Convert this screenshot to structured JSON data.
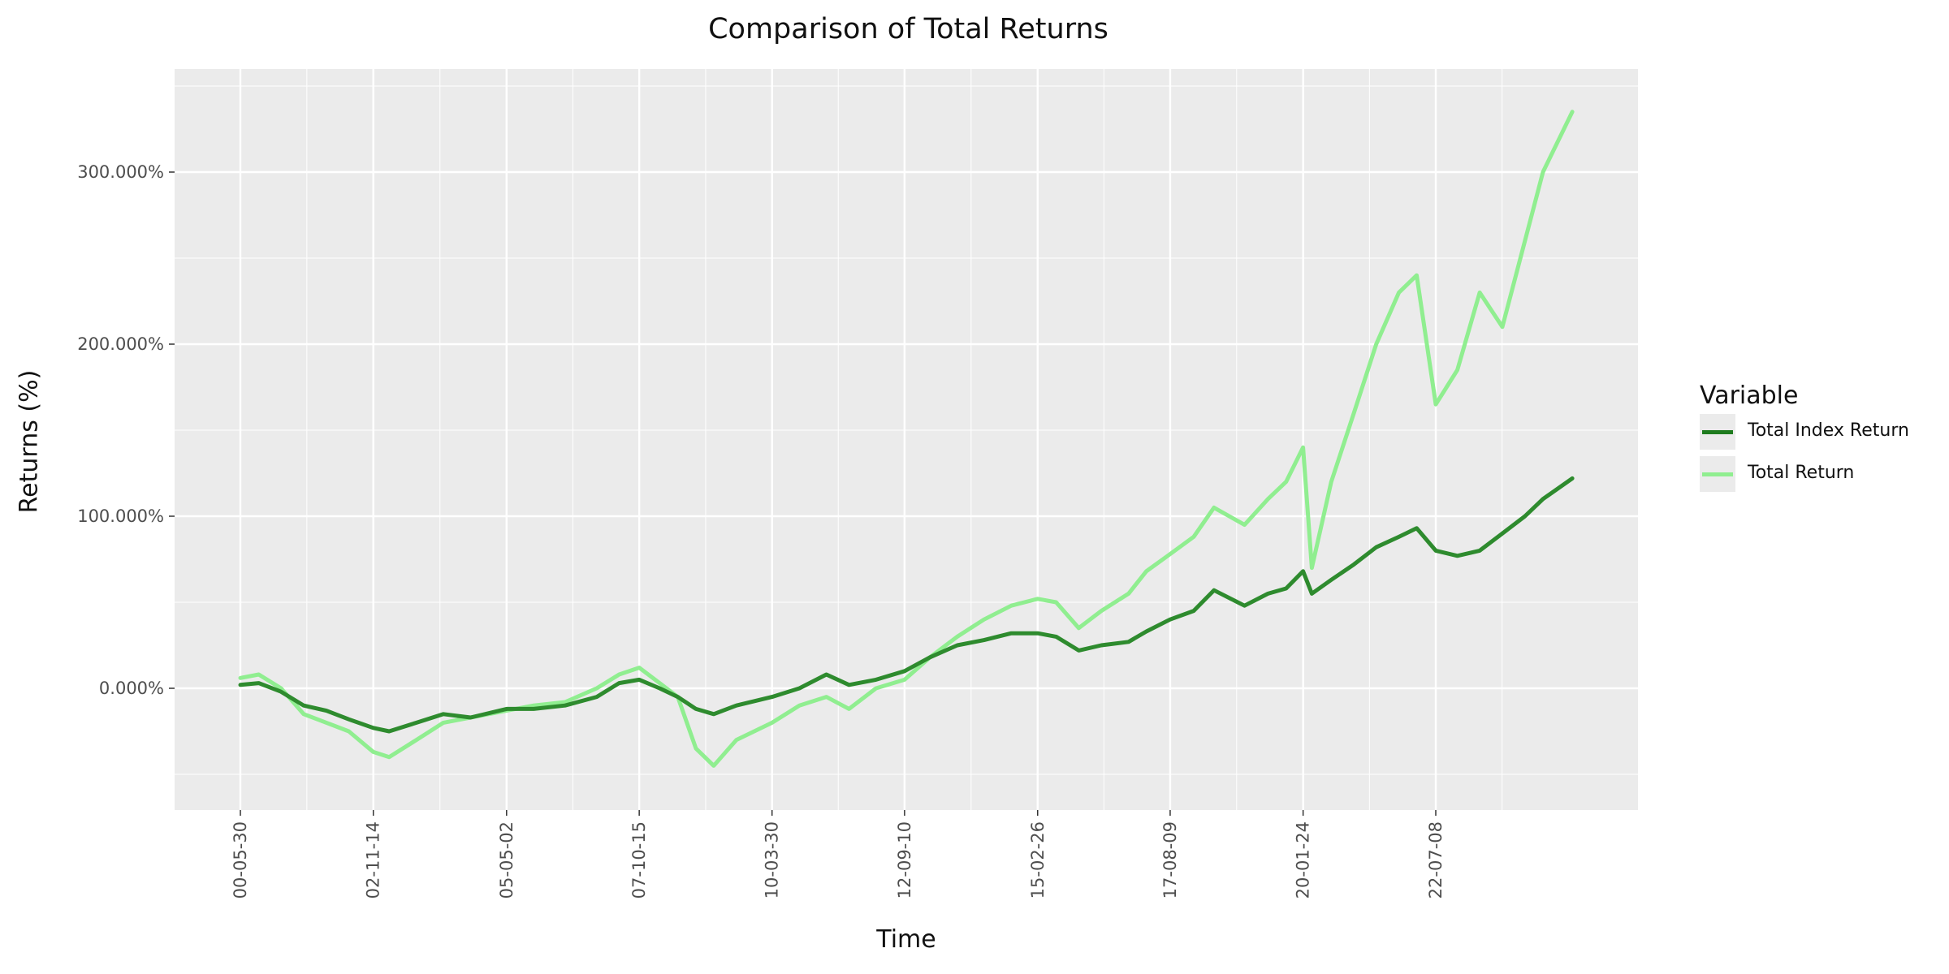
{
  "chart_data": {
    "type": "line",
    "title": "Comparison of Total Returns",
    "xlabel": "Time",
    "ylabel": "Returns (%)",
    "x_tick_labels": [
      "00-05-30",
      "02-11-14",
      "05-05-02",
      "07-10-15",
      "10-03-30",
      "12-09-10",
      "15-02-26",
      "17-08-09",
      "20-01-24",
      "22-07-08"
    ],
    "y_tick_labels": [
      "0.000%",
      "100.000%",
      "200.000%",
      "300.000%"
    ],
    "y_ticks": [
      0,
      100,
      200,
      300
    ],
    "ylim": [
      -70,
      360
    ],
    "grid": true,
    "legend": {
      "title": "Variable",
      "position": "right"
    },
    "background_color": "#ebebeb",
    "x": [
      "2000-05-30",
      "2000-10-01",
      "2001-03-01",
      "2001-08-01",
      "2002-01-01",
      "2002-06-01",
      "2002-11-14",
      "2003-03-01",
      "2003-09-01",
      "2004-03-01",
      "2004-09-01",
      "2005-05-02",
      "2005-11-01",
      "2006-06-01",
      "2007-01-01",
      "2007-06-01",
      "2007-10-15",
      "2008-03-01",
      "2008-07-01",
      "2008-11-01",
      "2009-03-01",
      "2009-08-01",
      "2010-03-30",
      "2010-10-01",
      "2011-04-01",
      "2011-09-01",
      "2012-03-01",
      "2012-09-10",
      "2013-03-01",
      "2013-09-01",
      "2014-03-01",
      "2014-09-01",
      "2015-02-26",
      "2015-07-01",
      "2015-12-01",
      "2016-05-01",
      "2016-11-01",
      "2017-03-01",
      "2017-08-09",
      "2018-01-15",
      "2018-06-01",
      "2018-12-24",
      "2019-06-01",
      "2019-10-01",
      "2020-01-24",
      "2020-03-23",
      "2020-08-01",
      "2021-01-01",
      "2021-06-01",
      "2021-11-01",
      "2022-03-01",
      "2022-07-08",
      "2022-12-01",
      "2023-05-01",
      "2023-10-01",
      "2024-03-01",
      "2024-07-01",
      "2025-01-15"
    ],
    "series": [
      {
        "name": "Total Index Return",
        "color": "#2e8b2e",
        "values": [
          2,
          3,
          -2,
          -10,
          -13,
          -18,
          -23,
          -25,
          -20,
          -15,
          -17,
          -12,
          -12,
          -10,
          -5,
          3,
          5,
          0,
          -5,
          -12,
          -15,
          -10,
          -5,
          0,
          8,
          2,
          5,
          10,
          18,
          25,
          28,
          32,
          32,
          30,
          22,
          25,
          27,
          33,
          40,
          45,
          57,
          48,
          55,
          58,
          68,
          55,
          63,
          72,
          82,
          88,
          93,
          80,
          77,
          80,
          90,
          100,
          110,
          122
        ]
      },
      {
        "name": "Total Return",
        "color": "#90ee90",
        "values": [
          6,
          8,
          0,
          -15,
          -20,
          -25,
          -37,
          -40,
          -30,
          -20,
          -17,
          -13,
          -10,
          -8,
          0,
          8,
          12,
          3,
          -5,
          -35,
          -45,
          -30,
          -20,
          -10,
          -5,
          -12,
          0,
          5,
          18,
          30,
          40,
          48,
          52,
          50,
          35,
          45,
          55,
          68,
          78,
          88,
          105,
          95,
          110,
          120,
          140,
          70,
          120,
          160,
          200,
          230,
          240,
          165,
          185,
          230,
          210,
          260,
          300,
          335
        ]
      }
    ]
  }
}
